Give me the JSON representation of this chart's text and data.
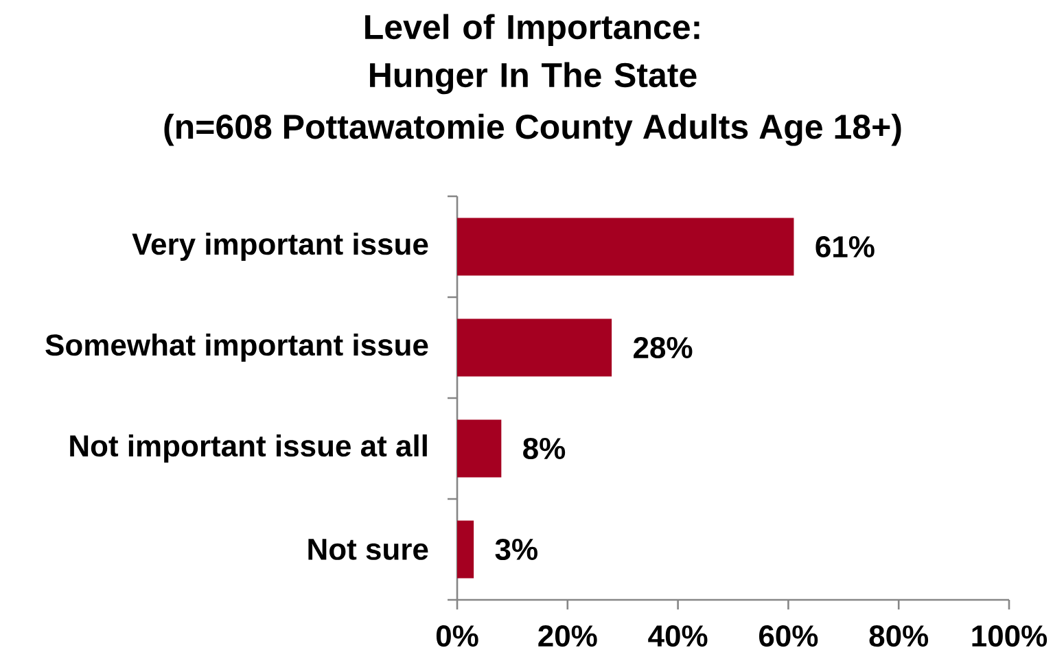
{
  "chart_data": {
    "type": "bar",
    "orientation": "horizontal",
    "title": "Level of Importance: Hunger In The State",
    "subtitle": "(n=608 Pottawatomie County Adults Age 18+)",
    "categories": [
      "Very important issue",
      "Somewhat important issue",
      "Not important issue at all",
      "Not sure"
    ],
    "values": [
      61,
      28,
      8,
      3
    ],
    "value_labels": [
      "61%",
      "28%",
      "8%",
      "3%"
    ],
    "color": "#a50021",
    "xlim": [
      0,
      100
    ],
    "xticks": [
      {
        "value": 0,
        "label": "0%"
      },
      {
        "value": 20,
        "label": "20%"
      },
      {
        "value": 40,
        "label": "40%"
      },
      {
        "value": 60,
        "label": "60%"
      },
      {
        "value": 80,
        "label": "80%"
      },
      {
        "value": 100,
        "label": "100%"
      }
    ]
  }
}
